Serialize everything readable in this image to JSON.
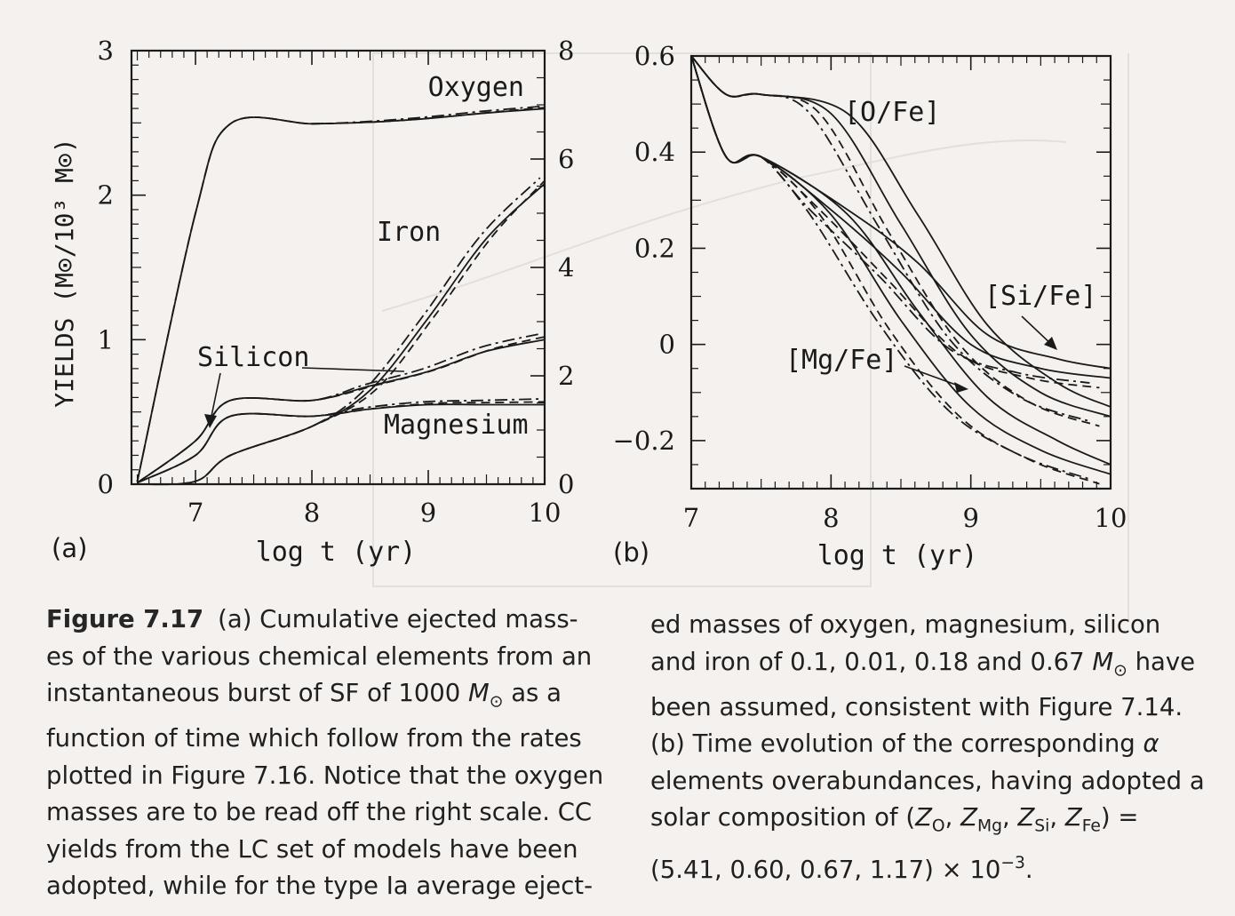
{
  "figure": {
    "panel_a": {
      "label": "(a)",
      "ylabel": "YIELDS (M⊙/10³ M⊙)",
      "xlabel": "log t (yr)",
      "left_ticks": [
        "0",
        "1",
        "2",
        "3"
      ],
      "right_ticks": [
        "0",
        "2",
        "4",
        "6",
        "8"
      ],
      "x_ticks": [
        "7",
        "8",
        "9",
        "10"
      ],
      "curve_labels": {
        "oxygen": "Oxygen",
        "iron": "Iron",
        "silicon": "Silicon",
        "magnesium": "Magnesium"
      }
    },
    "panel_b": {
      "label": "(b)",
      "xlabel": "log t (yr)",
      "y_ticks": [
        "−0.2",
        "0",
        "0.2",
        "0.4",
        "0.6"
      ],
      "x_ticks": [
        "7",
        "8",
        "9",
        "10"
      ],
      "curve_labels": {
        "ofe": "[O/Fe]",
        "sife": "[Si/Fe]",
        "mgfe": "[Mg/Fe]"
      }
    }
  },
  "chart_data": [
    {
      "type": "line",
      "panel": "(a)",
      "xlabel": "log t (yr)",
      "ylabel": "YIELDS (M⊙/10³ M⊙)",
      "xlim": [
        6.45,
        10
      ],
      "ylim_left": [
        0,
        3
      ],
      "ylim_right": [
        0,
        8
      ],
      "x": [
        6.5,
        7,
        7.3,
        8,
        8.5,
        9,
        9.5,
        10
      ],
      "series": [
        {
          "name": "Oxygen",
          "axis": "right",
          "values": [
            0.05,
            5.0,
            6.65,
            6.65,
            6.68,
            6.75,
            6.85,
            6.93
          ]
        },
        {
          "name": "Iron",
          "axis": "left",
          "values": [
            0,
            0.02,
            0.2,
            0.4,
            0.65,
            1.15,
            1.7,
            2.08
          ]
        },
        {
          "name": "Silicon",
          "axis": "left",
          "values": [
            0.01,
            0.3,
            0.58,
            0.58,
            0.68,
            0.78,
            0.92,
            1.0
          ]
        },
        {
          "name": "Magnesium",
          "axis": "left",
          "values": [
            0.01,
            0.2,
            0.47,
            0.47,
            0.52,
            0.55,
            0.55,
            0.55
          ]
        }
      ]
    },
    {
      "type": "line",
      "panel": "(b)",
      "xlabel": "log t (yr)",
      "ylabel": "",
      "xlim": [
        7,
        10
      ],
      "ylim": [
        -0.3,
        0.6
      ],
      "x": [
        7,
        7.25,
        7.5,
        8,
        8.5,
        9,
        9.5,
        10
      ],
      "series": [
        {
          "name": "[O/Fe]",
          "values": [
            0.6,
            0.52,
            0.52,
            0.48,
            0.25,
            0.02,
            -0.1,
            -0.15
          ]
        },
        {
          "name": "[Si/Fe]",
          "values": [
            0.6,
            0.39,
            0.39,
            0.28,
            0.15,
            0.0,
            -0.05,
            -0.07
          ]
        },
        {
          "name": "[Mg/Fe]",
          "values": [
            0.6,
            0.39,
            0.39,
            0.27,
            0.05,
            -0.13,
            -0.22,
            -0.27
          ]
        }
      ]
    }
  ],
  "caption": {
    "figure_label": "Figure 7.17",
    "left_text": "(a) Cumulative ejected mass-\nes of the various chemical elements from an\ninstantaneous burst of SF of 1000 ",
    "left_msun": "M",
    "left_text2": " as a\nfunction of time which follow from the rates\nplotted in Figure 7.16. Notice that the oxygen\nmasses are to be read off the right scale. CC\nyields from the LC set of models have been\nadopted, while for the type Ia average eject-",
    "right_text": "ed masses of oxygen, magnesium, silicon\nand iron of 0.1, 0.01, 0.18 and 0.67 ",
    "right_msun": "M",
    "right_text2": " have\nbeen assumed, consistent with Figure 7.14.\n(b) Time evolution of the corresponding ",
    "alpha": "α",
    "right_text3": "\nelements overabundances, having adopted a\nsolar composition of (",
    "z": "Z",
    "z_o": "O",
    "z_mg": "Mg",
    "z_si": "Si",
    "z_fe": "Fe",
    "comma": ", ",
    "right_text4": ") =\n(5.41, 0.60, 0.67, 1.17) × 10",
    "exponent": "−3",
    "right_end": ".",
    "odot": "⊙"
  },
  "colors": {
    "ink": "#1a1a1a",
    "paper": "#f4f1ee",
    "bleed": "#c9c6c4"
  }
}
